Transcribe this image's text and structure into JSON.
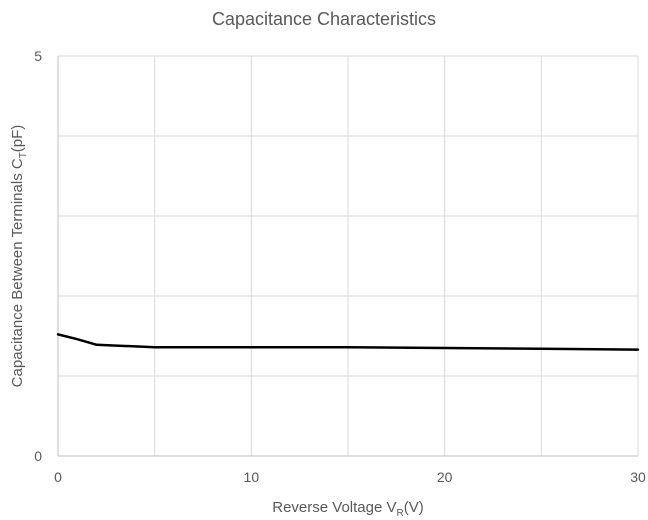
{
  "chart_data": {
    "type": "line",
    "title": "Capacitance Characteristics",
    "xlabel": {
      "main": "Reverse Voltage V",
      "sub": "R",
      "unit": "(V)"
    },
    "ylabel": {
      "main": "Capacitance Between Terminals C",
      "sub": "T",
      "unit": "(pF)"
    },
    "xlim": [
      0,
      30
    ],
    "ylim": [
      0,
      5
    ],
    "x_ticks": [
      "0",
      "10",
      "20",
      "30"
    ],
    "y_ticks": [
      "0",
      "5"
    ],
    "grid": true,
    "series": [
      {
        "color": "#000000",
        "x": [
          0,
          1,
          2,
          3,
          5,
          7,
          10,
          15,
          20,
          25,
          30
        ],
        "y": [
          1.52,
          1.46,
          1.39,
          1.38,
          1.36,
          1.36,
          1.36,
          1.36,
          1.35,
          1.34,
          1.33
        ]
      }
    ]
  }
}
